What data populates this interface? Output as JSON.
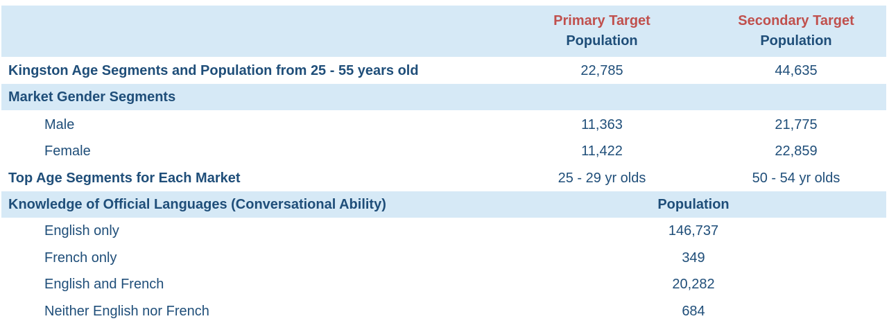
{
  "header": {
    "primary": {
      "accent": "Primary Target",
      "label": "Population"
    },
    "secondary": {
      "accent": "Secondary Target",
      "label": "Population"
    }
  },
  "rows": [
    {
      "label": "Kingston Age Segments and Population from 25 - 55 years old",
      "primary": "22,785",
      "secondary": "44,635"
    },
    {
      "label": "Market Gender Segments"
    },
    {
      "label": "Male",
      "primary": "11,363",
      "secondary": "21,775"
    },
    {
      "label": "Female",
      "primary": "11,422",
      "secondary": "22,859"
    },
    {
      "label": "Top Age Segments for Each Market",
      "primary": "25 - 29 yr olds",
      "secondary": "50 - 54 yr olds"
    }
  ],
  "languages": {
    "title": "Knowledge of Official Languages (Conversational Ability)",
    "column": "Population",
    "rows": [
      {
        "label": "English only",
        "value": "146,737"
      },
      {
        "label": "French only",
        "value": "349"
      },
      {
        "label": "English and French",
        "value": "20,282"
      },
      {
        "label": "Neither English nor French",
        "value": "684"
      }
    ]
  }
}
